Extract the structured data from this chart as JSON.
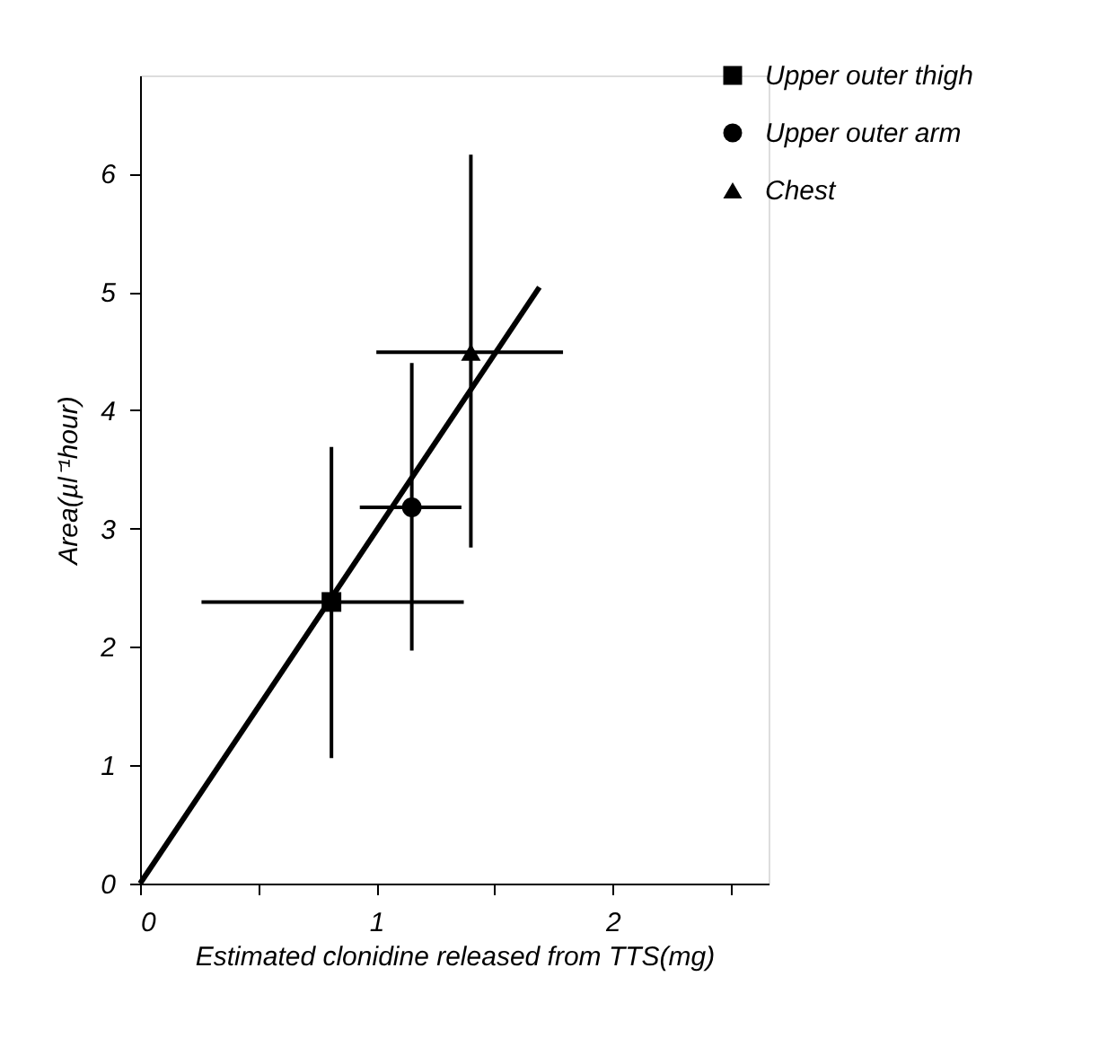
{
  "chart_data": {
    "type": "scatter",
    "xlabel": "Estimated clonidine released from TTS(mg)",
    "ylabel": "Area(µl⁻¹hour)",
    "xlim": [
      0,
      2.66
    ],
    "ylim": [
      0,
      6.83
    ],
    "xticks": [
      0,
      {
        "value": 0.5,
        "label": null
      },
      1,
      {
        "value": 1.5,
        "label": null
      },
      2,
      {
        "value": 2.5,
        "label": null
      }
    ],
    "yticks": [
      0,
      1,
      2,
      3,
      4,
      5,
      6
    ],
    "grid": false,
    "legend": "top right",
    "series": [
      {
        "name": "Upper outer thigh",
        "color": "#000000",
        "marker": "square",
        "x": [
          0.81
        ],
        "values": [
          2.38
        ],
        "errors": [
          [
            1.06,
            3.69
          ]
        ],
        "xerrors": [
          [
            0.26,
            1.37
          ]
        ]
      },
      {
        "name": "Upper outer arm",
        "color": "#000000",
        "marker": "circle",
        "x": [
          1.15
        ],
        "values": [
          3.18
        ],
        "errors": [
          [
            1.97,
            4.4
          ]
        ],
        "xerrors": [
          [
            0.93,
            1.36
          ]
        ]
      },
      {
        "name": "Chest",
        "color": "#000000",
        "marker": "triangle",
        "x": [
          1.4
        ],
        "values": [
          4.49
        ],
        "errors": [
          [
            2.84,
            6.16
          ]
        ],
        "xerrors": [
          [
            1.0,
            1.79
          ]
        ]
      },
      {
        "type": "line",
        "color": "#000000",
        "marker": "none",
        "line_style": "solid",
        "x": [
          0,
          1.69
        ],
        "values": [
          0,
          5.04
        ]
      }
    ]
  }
}
